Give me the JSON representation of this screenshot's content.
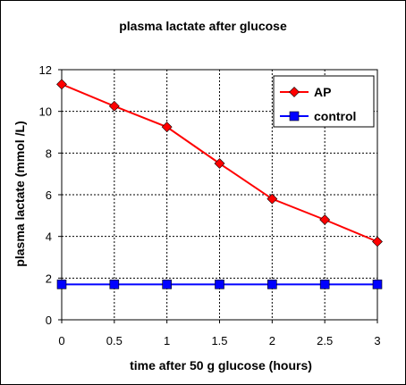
{
  "chart_data": {
    "type": "line",
    "title": "plasma lactate after glucose",
    "xlabel": "time after 50 g glucose (hours)",
    "ylabel": "plasma lactate (mmol /L)",
    "x": [
      0,
      0.5,
      1,
      1.5,
      2,
      2.5,
      3
    ],
    "xlim": [
      0,
      3
    ],
    "ylim": [
      0,
      12
    ],
    "xticks": [
      "0",
      "0.5",
      "1",
      "1.5",
      "2",
      "2.5",
      "3"
    ],
    "yticks": [
      "0",
      "2",
      "4",
      "6",
      "8",
      "10",
      "12"
    ],
    "grid": "dashed",
    "legend_position": "top-right",
    "series": [
      {
        "name": "AP",
        "color": "#ff0000",
        "marker": "diamond",
        "marker_color": "#ff0000",
        "values": [
          11.3,
          10.25,
          9.25,
          7.5,
          5.8,
          4.8,
          3.75
        ]
      },
      {
        "name": "control",
        "color": "#0000ff",
        "marker": "square",
        "marker_color": "#0000ff",
        "values": [
          1.7,
          1.7,
          1.7,
          1.7,
          1.7,
          1.7,
          1.7
        ]
      }
    ]
  }
}
